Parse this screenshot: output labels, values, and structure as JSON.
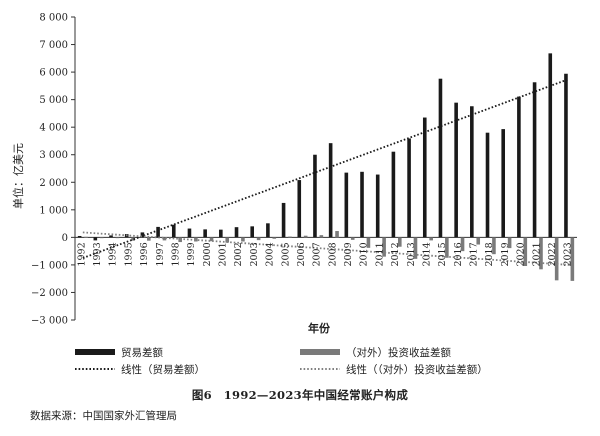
{
  "chart_data": {
    "type": "bar",
    "ylabel": "单位：亿美元",
    "xlabel": "年份",
    "ylim": [
      -3000,
      8000
    ],
    "yticks": [
      -3000,
      -2000,
      -1000,
      0,
      1000,
      2000,
      3000,
      4000,
      5000,
      6000,
      7000,
      8000
    ],
    "ytick_labels": [
      "−3 000",
      "−2 000",
      "−1 000",
      "0",
      "1 000",
      "2 000",
      "3 000",
      "4 000",
      "5 000",
      "6 000",
      "7 000",
      "8 000"
    ],
    "categories": [
      "1992",
      "1993",
      "1994",
      "1995",
      "1996",
      "1997",
      "1998",
      "1999",
      "2000",
      "2001",
      "2002",
      "2003",
      "2004",
      "2005",
      "2006",
      "2007",
      "2008",
      "2009",
      "2010",
      "2011",
      "2012",
      "2013",
      "2014",
      "2015",
      "2016",
      "2017",
      "2018",
      "2019",
      "2020",
      "2021",
      "2022",
      "2023"
    ],
    "series": [
      {
        "name": "贸易差额",
        "color": "#1a1a1a",
        "values": [
          50,
          -110,
          70,
          120,
          180,
          380,
          460,
          320,
          290,
          280,
          370,
          400,
          510,
          1250,
          2080,
          3000,
          3420,
          2350,
          2380,
          2280,
          3110,
          3590,
          4350,
          5760,
          4890,
          4760,
          3800,
          3930,
          5110,
          5630,
          6680,
          5940
        ]
      },
      {
        "name": "（对外）投资收益差额",
        "color": "#7a7a7a",
        "values": [
          20,
          -20,
          -10,
          -120,
          -120,
          -110,
          -170,
          -150,
          -140,
          -190,
          -150,
          -100,
          -50,
          30,
          60,
          80,
          230,
          -90,
          -380,
          -700,
          -340,
          -780,
          -110,
          -740,
          -500,
          -260,
          -610,
          -390,
          -1040,
          -1160,
          -1560,
          -1580
        ]
      }
    ],
    "trendlines": [
      {
        "name": "线性（贸易差额）",
        "color": "#1a1a1a",
        "start": -750,
        "end": 5750
      },
      {
        "name": "线性（（对外）投资收益差额）",
        "color": "#808080",
        "start": 180,
        "end": -1000
      }
    ],
    "legend": "bottom",
    "grid": false
  },
  "caption": "图6　1992—2023年中国经常账户构成",
  "source": "数据来源：中国国家外汇管理局"
}
